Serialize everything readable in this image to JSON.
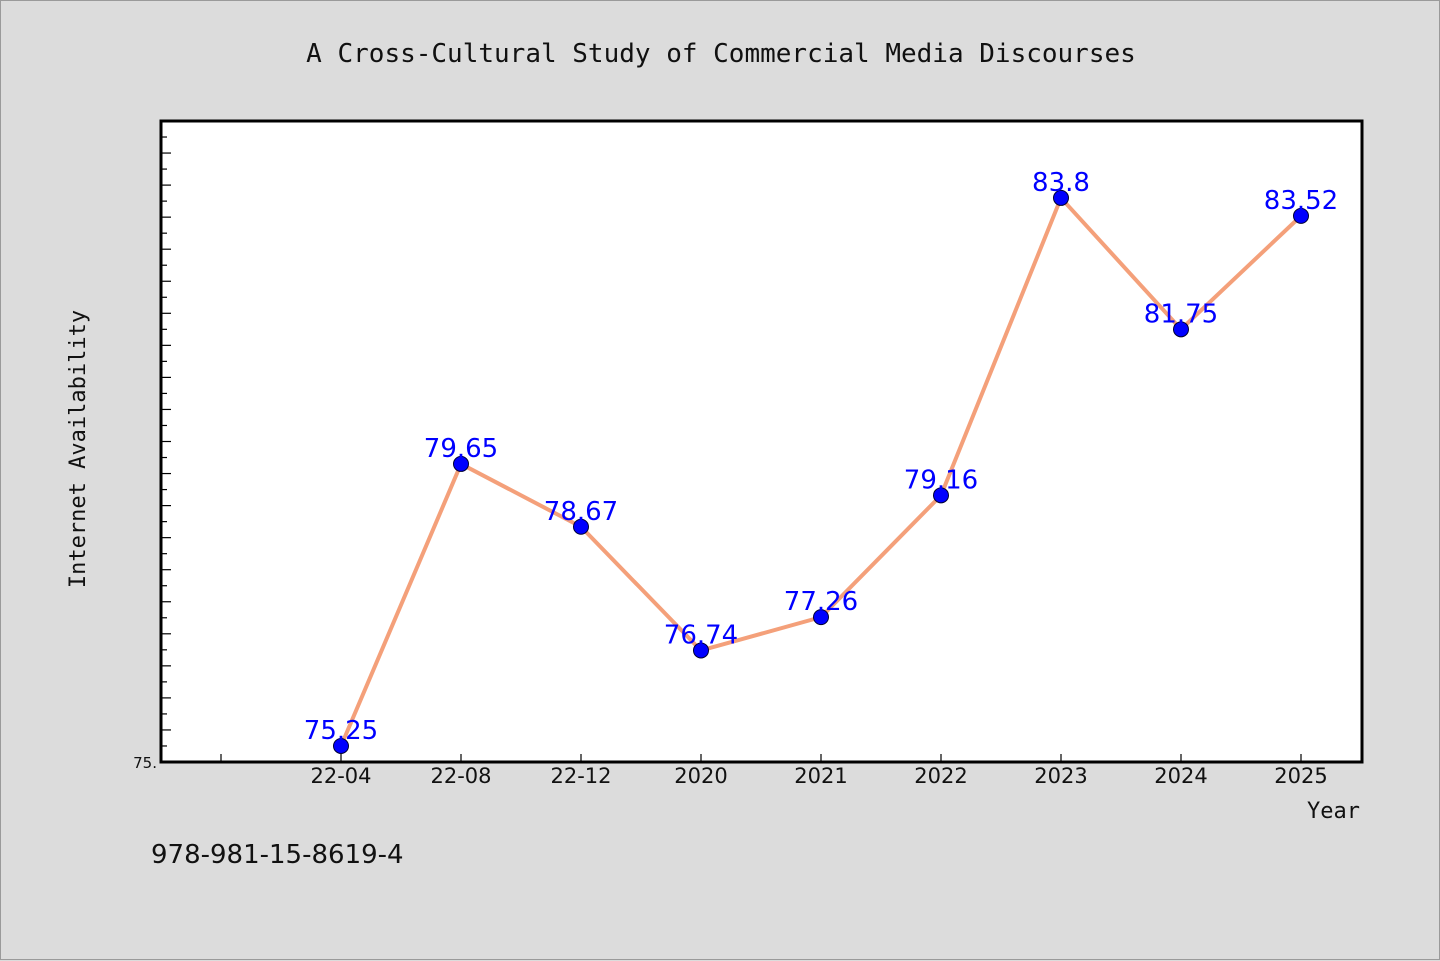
{
  "chart_data": {
    "type": "line",
    "title": "A Cross-Cultural Study of Commercial Media Discourses",
    "xlabel": "Year",
    "ylabel": "Internet Availability",
    "categories": [
      "22-04",
      "22-08",
      "22-12",
      "2020",
      "2021",
      "2022",
      "2023",
      "2024",
      "2025"
    ],
    "series": [
      {
        "values": [
          75.25,
          79.65,
          78.67,
          76.74,
          77.26,
          79.16,
          83.8,
          81.75,
          83.52
        ],
        "data_labels": [
          "75.25",
          "79.65",
          "78.67",
          "76.74",
          "77.26",
          "79.16",
          "83.8",
          "81.75",
          "83.52"
        ],
        "line_color": "#f4a07a",
        "marker_color": "#0000ff"
      }
    ],
    "ylim": [
      75.0,
      85.0
    ],
    "y_tick_labels": [
      {
        "value": 75.0,
        "label": "75."
      }
    ],
    "grid": false,
    "legend": "none"
  },
  "footer": {
    "isbn": "978-981-15-8619-4"
  }
}
